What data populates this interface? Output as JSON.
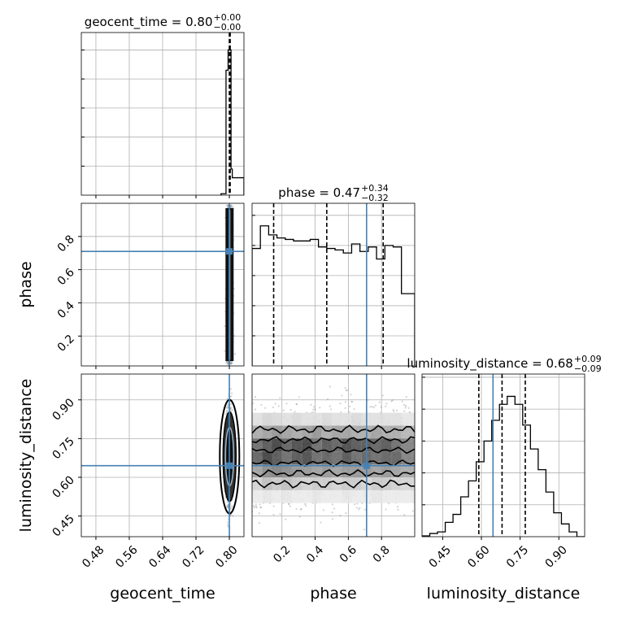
{
  "chart_data": {
    "type": "corner",
    "parameters": [
      "geocent_time",
      "phase",
      "luminosity_distance"
    ],
    "truths": {
      "geocent_time": 0.8,
      "phase": 0.71,
      "luminosity_distance": 0.645
    },
    "colors": {
      "truth": "#4682b4",
      "hist": "#000000",
      "points": "#808080",
      "grid": "#b0b0b0"
    },
    "grid": true,
    "titles": [
      {
        "param": "geocent_time",
        "prefix": "geocent_time = 0.80",
        "sup": "+0.00",
        "sub": "−0.00"
      },
      {
        "param": "phase",
        "prefix": "phase = 0.47",
        "sup": "+0.34",
        "sub": "−0.32"
      },
      {
        "param": "luminosity_distance",
        "prefix": "luminosity_distance = 0.68",
        "sup": "+0.09",
        "sub": "−0.09"
      }
    ],
    "axes": {
      "geocent_time": {
        "range": [
          0.445,
          0.835
        ],
        "ticks": [
          0.48,
          0.56,
          0.64,
          0.72,
          0.8
        ],
        "tick_labels": [
          "0.48",
          "0.56",
          "0.64",
          "0.72",
          "0.80"
        ]
      },
      "phase": {
        "range": [
          0.02,
          1.0
        ],
        "ticks": [
          0.2,
          0.4,
          0.6,
          0.8
        ],
        "tick_labels": [
          "0.2",
          "0.4",
          "0.6",
          "0.8"
        ]
      },
      "luminosity_distance": {
        "range": [
          0.37,
          1.0
        ],
        "ticks": [
          0.45,
          0.6,
          0.75,
          0.9
        ],
        "tick_labels": [
          "0.45",
          "0.60",
          "0.75",
          "0.90"
        ]
      }
    },
    "quantiles": {
      "geocent_time": [
        0.8,
        0.801,
        0.802
      ],
      "phase": [
        0.15,
        0.47,
        0.81
      ],
      "luminosity_distance": [
        0.59,
        0.68,
        0.77
      ]
    },
    "histograms": {
      "geocent_time": {
        "edges": [
          0.78,
          0.792,
          0.797,
          0.804,
          0.807,
          0.835
        ],
        "counts": [
          0.01,
          0.86,
          1.0,
          0.18,
          0.12
        ],
        "ymax": 1.12
      },
      "phase": {
        "edges": [
          0.02,
          0.07,
          0.12,
          0.17,
          0.22,
          0.27,
          0.32,
          0.37,
          0.42,
          0.47,
          0.52,
          0.57,
          0.62,
          0.67,
          0.72,
          0.77,
          0.82,
          0.87,
          0.92,
          0.97,
          1.0
        ],
        "counts": [
          0.78,
          0.93,
          0.87,
          0.85,
          0.84,
          0.83,
          0.83,
          0.84,
          0.79,
          0.78,
          0.77,
          0.75,
          0.81,
          0.76,
          0.79,
          0.71,
          0.8,
          0.79,
          0.48,
          0.48
        ],
        "ymax": 1.08
      },
      "luminosity_distance": {
        "edges": [
          0.37,
          0.4,
          0.43,
          0.46,
          0.49,
          0.52,
          0.55,
          0.58,
          0.61,
          0.64,
          0.67,
          0.7,
          0.73,
          0.76,
          0.79,
          0.82,
          0.85,
          0.88,
          0.91,
          0.94,
          0.97,
          1.0
        ],
        "counts": [
          0.005,
          0.02,
          0.03,
          0.09,
          0.14,
          0.25,
          0.35,
          0.47,
          0.6,
          0.73,
          0.83,
          0.88,
          0.83,
          0.7,
          0.55,
          0.42,
          0.28,
          0.15,
          0.08,
          0.03,
          0.0
        ],
        "ymax": 1.02
      }
    },
    "grid2d": {
      "phase_vs_luminosity_distance": {
        "phase_edges": [
          0.02,
          0.08,
          0.14,
          0.2,
          0.26,
          0.32,
          0.38,
          0.44,
          0.5,
          0.56,
          0.62,
          0.68,
          0.74,
          0.8,
          0.86,
          0.92,
          1.0
        ],
        "ld_edges": [
          0.5,
          0.55,
          0.6,
          0.65,
          0.7,
          0.75,
          0.8,
          0.85
        ],
        "density": [
          [
            0.1,
            0.12,
            0.1,
            0.12,
            0.1,
            0.1,
            0.12,
            0.1,
            0.1,
            0.12,
            0.1,
            0.1,
            0.12,
            0.1,
            0.1,
            0.1
          ],
          [
            0.2,
            0.3,
            0.25,
            0.3,
            0.25,
            0.22,
            0.25,
            0.25,
            0.22,
            0.25,
            0.25,
            0.2,
            0.25,
            0.25,
            0.22,
            0.2
          ],
          [
            0.45,
            0.55,
            0.6,
            0.55,
            0.5,
            0.5,
            0.45,
            0.5,
            0.45,
            0.5,
            0.5,
            0.5,
            0.45,
            0.5,
            0.45,
            0.4
          ],
          [
            0.75,
            0.9,
            0.8,
            0.7,
            0.8,
            0.85,
            0.7,
            0.75,
            0.7,
            0.8,
            0.7,
            0.75,
            0.7,
            0.75,
            0.75,
            0.6
          ],
          [
            0.7,
            0.8,
            0.9,
            0.75,
            0.85,
            0.9,
            0.7,
            0.8,
            0.75,
            0.85,
            0.8,
            0.8,
            0.75,
            0.8,
            0.7,
            0.6
          ],
          [
            0.4,
            0.45,
            0.5,
            0.45,
            0.4,
            0.45,
            0.5,
            0.4,
            0.45,
            0.45,
            0.4,
            0.4,
            0.45,
            0.4,
            0.4,
            0.35
          ],
          [
            0.15,
            0.2,
            0.18,
            0.15,
            0.18,
            0.15,
            0.15,
            0.18,
            0.15,
            0.15,
            0.18,
            0.15,
            0.15,
            0.15,
            0.15,
            0.12
          ]
        ]
      }
    }
  }
}
